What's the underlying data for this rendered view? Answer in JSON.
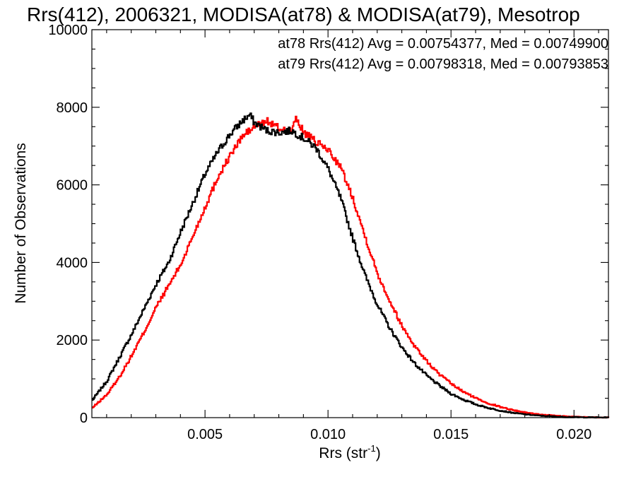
{
  "chart_data": {
    "type": "line",
    "title": "Rrs(412), 2006321, MODISA(at78) & MODISA(at79), Mesotrop",
    "xlabel": "Rrs (str",
    "xlabel_sup": "-1",
    "xlabel_close": ")",
    "ylabel": "Number of Observations",
    "xlim": [
      0.0004,
      0.0214
    ],
    "ylim": [
      0,
      10000
    ],
    "x_ticks": [
      {
        "value": 0.005,
        "label": "0.005"
      },
      {
        "value": 0.01,
        "label": "0.010"
      },
      {
        "value": 0.015,
        "label": "0.015"
      },
      {
        "value": 0.02,
        "label": "0.020"
      }
    ],
    "y_ticks": [
      {
        "value": 0,
        "label": "0"
      },
      {
        "value": 2000,
        "label": "2000"
      },
      {
        "value": 4000,
        "label": "4000"
      },
      {
        "value": 6000,
        "label": "6000"
      },
      {
        "value": 8000,
        "label": "8000"
      },
      {
        "value": 10000,
        "label": "10000"
      }
    ],
    "grid": false,
    "annotations": [
      {
        "text": "at78 Rrs(412) Avg = 0.00754377, Med = 0.00749900",
        "color": "#000000"
      },
      {
        "text": "at79 Rrs(412) Avg = 0.00798318, Med = 0.00793853",
        "color": "#ff0000"
      }
    ],
    "series": [
      {
        "color": "#000000",
        "x": [
          0.0004,
          0.001,
          0.0015,
          0.002,
          0.0025,
          0.003,
          0.0035,
          0.004,
          0.0045,
          0.005,
          0.0055,
          0.006,
          0.0065,
          0.0068,
          0.007,
          0.0075,
          0.008,
          0.0085,
          0.009,
          0.0095,
          0.01,
          0.0105,
          0.011,
          0.0115,
          0.012,
          0.0125,
          0.013,
          0.0135,
          0.014,
          0.0145,
          0.015,
          0.0155,
          0.016,
          0.0165,
          0.017,
          0.0175,
          0.018,
          0.0185,
          0.019,
          0.0195,
          0.02,
          0.0205,
          0.021,
          0.0214
        ],
        "y": [
          450,
          950,
          1550,
          2150,
          2800,
          3450,
          4000,
          4800,
          5550,
          6300,
          6850,
          7300,
          7650,
          7800,
          7600,
          7400,
          7350,
          7400,
          7200,
          6950,
          6400,
          5650,
          4600,
          3650,
          2900,
          2300,
          1800,
          1400,
          1080,
          830,
          610,
          460,
          340,
          250,
          180,
          125,
          85,
          55,
          35,
          20,
          12,
          8,
          5,
          3
        ]
      },
      {
        "color": "#ff0000",
        "x": [
          0.0004,
          0.001,
          0.0015,
          0.002,
          0.0025,
          0.003,
          0.0035,
          0.004,
          0.0045,
          0.005,
          0.0055,
          0.006,
          0.0065,
          0.007,
          0.0075,
          0.008,
          0.0085,
          0.0087,
          0.009,
          0.0095,
          0.01,
          0.0105,
          0.011,
          0.0115,
          0.012,
          0.0125,
          0.013,
          0.0135,
          0.014,
          0.0145,
          0.015,
          0.0155,
          0.016,
          0.0165,
          0.017,
          0.0175,
          0.018,
          0.0185,
          0.019,
          0.0195,
          0.02,
          0.0205,
          0.021,
          0.0214
        ],
        "y": [
          250,
          600,
          1050,
          1600,
          2200,
          2850,
          3400,
          3950,
          4700,
          5450,
          6200,
          6750,
          7250,
          7500,
          7650,
          7450,
          7400,
          7700,
          7350,
          7100,
          6900,
          6450,
          5650,
          4650,
          3700,
          3000,
          2350,
          1850,
          1450,
          1120,
          870,
          660,
          500,
          370,
          275,
          195,
          135,
          90,
          60,
          38,
          22,
          12,
          7,
          4
        ]
      }
    ]
  }
}
